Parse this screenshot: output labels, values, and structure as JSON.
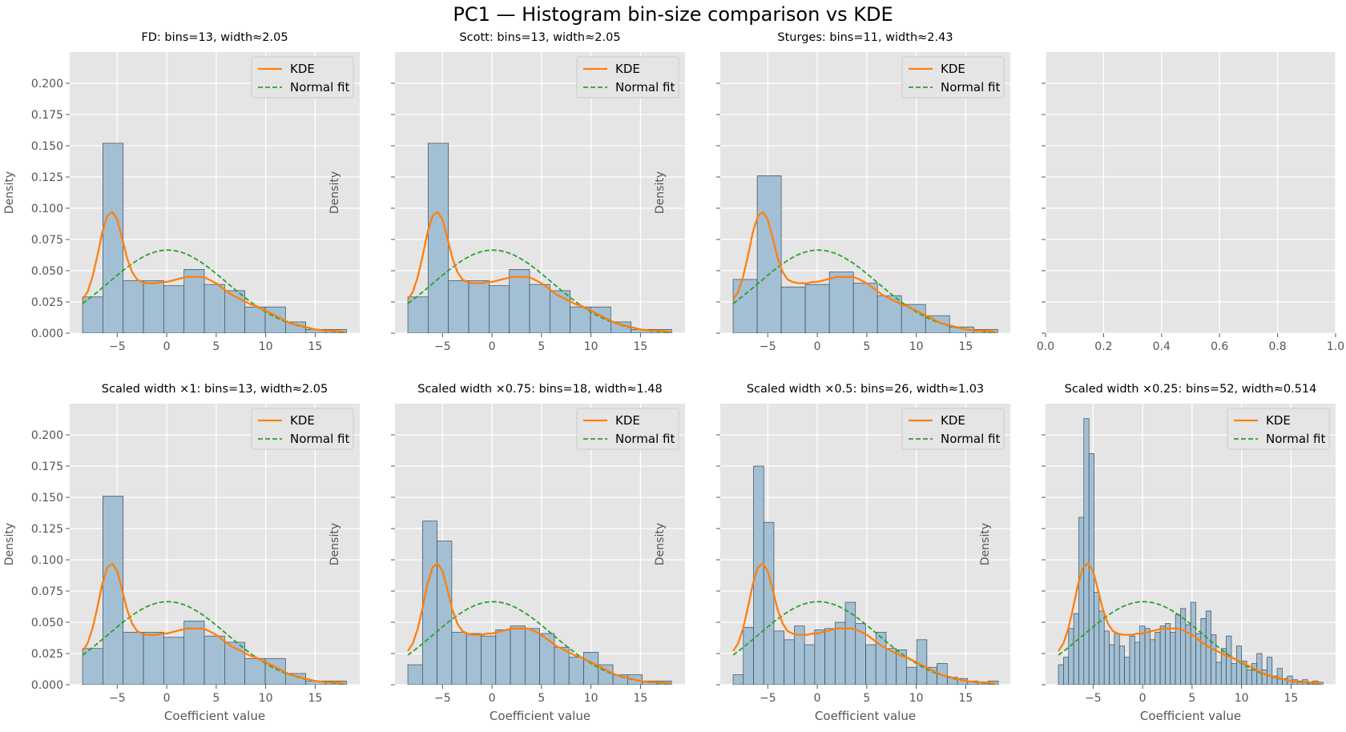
{
  "figure": {
    "title": "PC1 — Histogram bin-size comparison vs KDE"
  },
  "colors": {
    "axes_bg": "#e5e5e5",
    "grid": "#ffffff",
    "hist_fill": "#a3bfd4",
    "hist_edge": "#3b4a56",
    "kde": "#ff7f0e",
    "normal": "#2ca02c",
    "tick_text": "#555555"
  },
  "chart_data": [
    {
      "type": "bar",
      "title": "FD: bins=13, width≈2.05",
      "xlabel": "",
      "ylabel": "Density",
      "xlim": [
        -9.8,
        19.5
      ],
      "ylim": [
        0,
        0.225
      ],
      "xticks": [
        -5,
        0,
        5,
        10,
        15
      ],
      "yticks": [
        0.0,
        0.025,
        0.05,
        0.075,
        0.1,
        0.125,
        0.15,
        0.175,
        0.2
      ],
      "bin_start": -8.5,
      "bin_width": 2.05,
      "values": [
        0.029,
        0.152,
        0.042,
        0.042,
        0.038,
        0.051,
        0.039,
        0.034,
        0.021,
        0.021,
        0.009,
        0.003,
        0.003
      ],
      "legend": [
        "KDE",
        "Normal fit"
      ],
      "legend_position": "upper right",
      "grid": true
    },
    {
      "type": "bar",
      "title": "Scott: bins=13, width≈2.05",
      "xlabel": "",
      "ylabel": "Density",
      "xlim": [
        -9.8,
        19.5
      ],
      "ylim": [
        0,
        0.225
      ],
      "xticks": [
        -5,
        0,
        5,
        10,
        15
      ],
      "yticks": [
        0.0,
        0.025,
        0.05,
        0.075,
        0.1,
        0.125,
        0.15,
        0.175,
        0.2
      ],
      "bin_start": -8.5,
      "bin_width": 2.05,
      "values": [
        0.029,
        0.152,
        0.042,
        0.042,
        0.038,
        0.051,
        0.039,
        0.034,
        0.021,
        0.021,
        0.009,
        0.003,
        0.003
      ],
      "legend": [
        "KDE",
        "Normal fit"
      ],
      "legend_position": "upper right",
      "grid": true
    },
    {
      "type": "bar",
      "title": "Sturges: bins=11, width≈2.43",
      "xlabel": "",
      "ylabel": "Density",
      "xlim": [
        -9.8,
        19.5
      ],
      "ylim": [
        0,
        0.225
      ],
      "xticks": [
        -5,
        0,
        5,
        10,
        15
      ],
      "yticks": [
        0.0,
        0.025,
        0.05,
        0.075,
        0.1,
        0.125,
        0.15,
        0.175,
        0.2
      ],
      "bin_start": -8.5,
      "bin_width": 2.43,
      "values": [
        0.043,
        0.126,
        0.037,
        0.039,
        0.049,
        0.04,
        0.03,
        0.023,
        0.014,
        0.005,
        0.003
      ],
      "legend": [
        "KDE",
        "Normal fit"
      ],
      "legend_position": "upper right",
      "grid": true
    },
    {
      "type": "empty",
      "title": "",
      "xlim": [
        0,
        1
      ],
      "xticks": [
        0.0,
        0.2,
        0.4,
        0.6,
        0.8,
        1.0
      ],
      "grid": true
    },
    {
      "type": "bar",
      "title": "Scaled width ×1: bins=13, width≈2.05",
      "xlabel": "Coefficient value",
      "ylabel": "Density",
      "xlim": [
        -9.8,
        19.5
      ],
      "ylim": [
        0,
        0.225
      ],
      "xticks": [
        -5,
        0,
        5,
        10,
        15
      ],
      "yticks": [
        0.0,
        0.025,
        0.05,
        0.075,
        0.1,
        0.125,
        0.15,
        0.175,
        0.2
      ],
      "bin_start": -8.5,
      "bin_width": 2.05,
      "values": [
        0.029,
        0.151,
        0.042,
        0.042,
        0.038,
        0.051,
        0.039,
        0.034,
        0.021,
        0.021,
        0.009,
        0.003,
        0.003
      ],
      "legend": [
        "KDE",
        "Normal fit"
      ],
      "legend_position": "upper right",
      "grid": true
    },
    {
      "type": "bar",
      "title": "Scaled width ×0.75: bins=18, width≈1.48",
      "xlabel": "Coefficient value",
      "ylabel": "Density",
      "xlim": [
        -9.8,
        19.5
      ],
      "ylim": [
        0,
        0.225
      ],
      "xticks": [
        -5,
        0,
        5,
        10,
        15
      ],
      "yticks": [
        0.0,
        0.025,
        0.05,
        0.075,
        0.1,
        0.125,
        0.15,
        0.175,
        0.2
      ],
      "bin_start": -8.5,
      "bin_width": 1.48,
      "values": [
        0.016,
        0.131,
        0.115,
        0.042,
        0.041,
        0.039,
        0.044,
        0.047,
        0.045,
        0.041,
        0.03,
        0.022,
        0.026,
        0.016,
        0.008,
        0.008,
        0.003,
        0.003
      ],
      "legend": [
        "KDE",
        "Normal fit"
      ],
      "legend_position": "upper right",
      "grid": true
    },
    {
      "type": "bar",
      "title": "Scaled width ×0.5: bins=26, width≈1.03",
      "xlabel": "Coefficient value",
      "ylabel": "Density",
      "xlim": [
        -9.8,
        19.5
      ],
      "ylim": [
        0,
        0.225
      ],
      "xticks": [
        -5,
        0,
        5,
        10,
        15
      ],
      "yticks": [
        0.0,
        0.025,
        0.05,
        0.075,
        0.1,
        0.125,
        0.15,
        0.175,
        0.2
      ],
      "bin_start": -8.5,
      "bin_width": 1.03,
      "values": [
        0.008,
        0.046,
        0.175,
        0.13,
        0.043,
        0.036,
        0.047,
        0.032,
        0.044,
        0.045,
        0.05,
        0.066,
        0.049,
        0.032,
        0.042,
        0.029,
        0.028,
        0.014,
        0.036,
        0.014,
        0.017,
        0.006,
        0.005,
        0.003,
        0.002,
        0.003
      ],
      "legend": [
        "KDE",
        "Normal fit"
      ],
      "legend_position": "upper right",
      "grid": true
    },
    {
      "type": "bar",
      "title": "Scaled width ×0.25: bins=52, width≈0.514",
      "xlabel": "Coefficient value",
      "ylabel": "Density",
      "xlim": [
        -9.8,
        19.5
      ],
      "ylim": [
        0,
        0.225
      ],
      "xticks": [
        -5,
        0,
        5,
        10,
        15
      ],
      "yticks": [
        0.0,
        0.025,
        0.05,
        0.075,
        0.1,
        0.125,
        0.15,
        0.175,
        0.2
      ],
      "bin_start": -8.5,
      "bin_width": 0.514,
      "values": [
        0.016,
        0.022,
        0.045,
        0.057,
        0.134,
        0.213,
        0.185,
        0.074,
        0.059,
        0.043,
        0.032,
        0.041,
        0.031,
        0.022,
        0.039,
        0.034,
        0.047,
        0.045,
        0.036,
        0.042,
        0.047,
        0.049,
        0.042,
        0.056,
        0.061,
        0.048,
        0.066,
        0.041,
        0.053,
        0.059,
        0.04,
        0.018,
        0.029,
        0.039,
        0.017,
        0.031,
        0.019,
        0.012,
        0.017,
        0.025,
        0.012,
        0.022,
        0.007,
        0.013,
        0.005,
        0.007,
        0.004,
        0.003,
        0.004,
        0.002,
        0.003,
        0.002
      ],
      "legend": [
        "KDE",
        "Normal fit"
      ],
      "legend_position": "upper right",
      "grid": true
    }
  ],
  "curves": {
    "kde": {
      "name": "KDE",
      "x": [
        -8.5,
        -8.0,
        -7.5,
        -7.0,
        -6.5,
        -6.0,
        -5.5,
        -5.0,
        -4.5,
        -4.0,
        -3.5,
        -3.0,
        -2.5,
        -2.0,
        -1.5,
        -1.0,
        -0.5,
        0.0,
        0.5,
        1.0,
        1.5,
        2.0,
        2.5,
        3.0,
        3.5,
        4.0,
        4.5,
        5.0,
        5.5,
        6.0,
        6.5,
        7.0,
        7.5,
        8.0,
        8.5,
        9.0,
        9.5,
        10.0,
        10.5,
        11.0,
        11.5,
        12.0,
        12.5,
        13.0,
        13.5,
        14.0,
        14.5,
        15.0,
        16.0,
        17.0,
        18.0
      ],
      "y": [
        0.027,
        0.033,
        0.045,
        0.062,
        0.081,
        0.094,
        0.097,
        0.091,
        0.076,
        0.06,
        0.049,
        0.043,
        0.041,
        0.04,
        0.04,
        0.04,
        0.041,
        0.041,
        0.042,
        0.043,
        0.044,
        0.045,
        0.045,
        0.045,
        0.045,
        0.044,
        0.042,
        0.04,
        0.037,
        0.034,
        0.031,
        0.029,
        0.027,
        0.025,
        0.023,
        0.022,
        0.02,
        0.018,
        0.016,
        0.014,
        0.012,
        0.01,
        0.008,
        0.007,
        0.006,
        0.005,
        0.004,
        0.003,
        0.002,
        0.002,
        0.001
      ]
    },
    "normal": {
      "name": "Normal fit",
      "mean": 0.1,
      "sd": 6.0
    }
  }
}
